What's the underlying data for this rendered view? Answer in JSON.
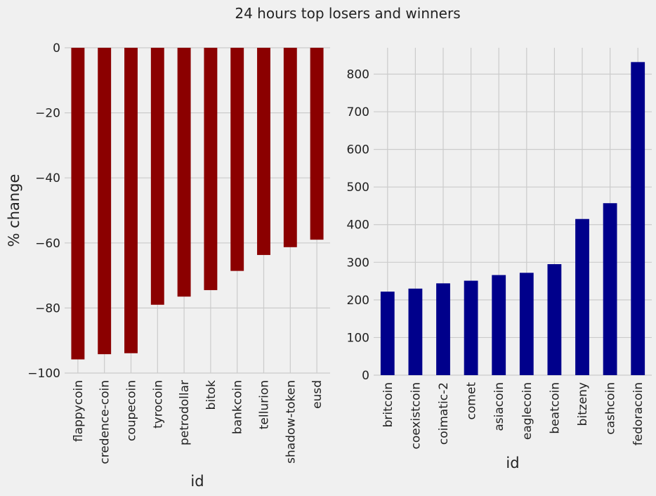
{
  "figure": {
    "title": "24 hours top losers and winners"
  },
  "chart_data": [
    {
      "type": "bar",
      "title": "",
      "xlabel": "id",
      "ylabel": "% change",
      "ylim": [
        -100,
        0
      ],
      "yticks": [
        0,
        -20,
        -40,
        -60,
        -80,
        -100
      ],
      "ytick_labels": [
        "0",
        "−20",
        "−40",
        "−60",
        "−80",
        "−100"
      ],
      "grid": true,
      "color": "#8b0000",
      "categories": [
        "flappycoin",
        "credence-coin",
        "coupecoin",
        "tyrocoin",
        "petrodollar",
        "bitok",
        "bankcoin",
        "tellurion",
        "shadow-token",
        "eusd"
      ],
      "values": [
        -95.8,
        -94.2,
        -93.9,
        -79.0,
        -76.5,
        -74.5,
        -68.6,
        -63.7,
        -61.3,
        -59.0
      ]
    },
    {
      "type": "bar",
      "title": "",
      "xlabel": "id",
      "ylabel": "",
      "ylim": [
        0,
        870
      ],
      "yticks": [
        0,
        100,
        200,
        300,
        400,
        500,
        600,
        700,
        800
      ],
      "ytick_labels": [
        "0",
        "100",
        "200",
        "300",
        "400",
        "500",
        "600",
        "700",
        "800"
      ],
      "grid": true,
      "color": "#00008b",
      "categories": [
        "britcoin",
        "coexistcoin",
        "coimatic-2",
        "comet",
        "asiacoin",
        "eaglecoin",
        "beatcoin",
        "bitzeny",
        "cashcoin",
        "fedoracoin"
      ],
      "values": [
        222,
        230,
        244,
        251,
        266,
        272,
        295,
        415,
        457,
        832
      ]
    }
  ]
}
